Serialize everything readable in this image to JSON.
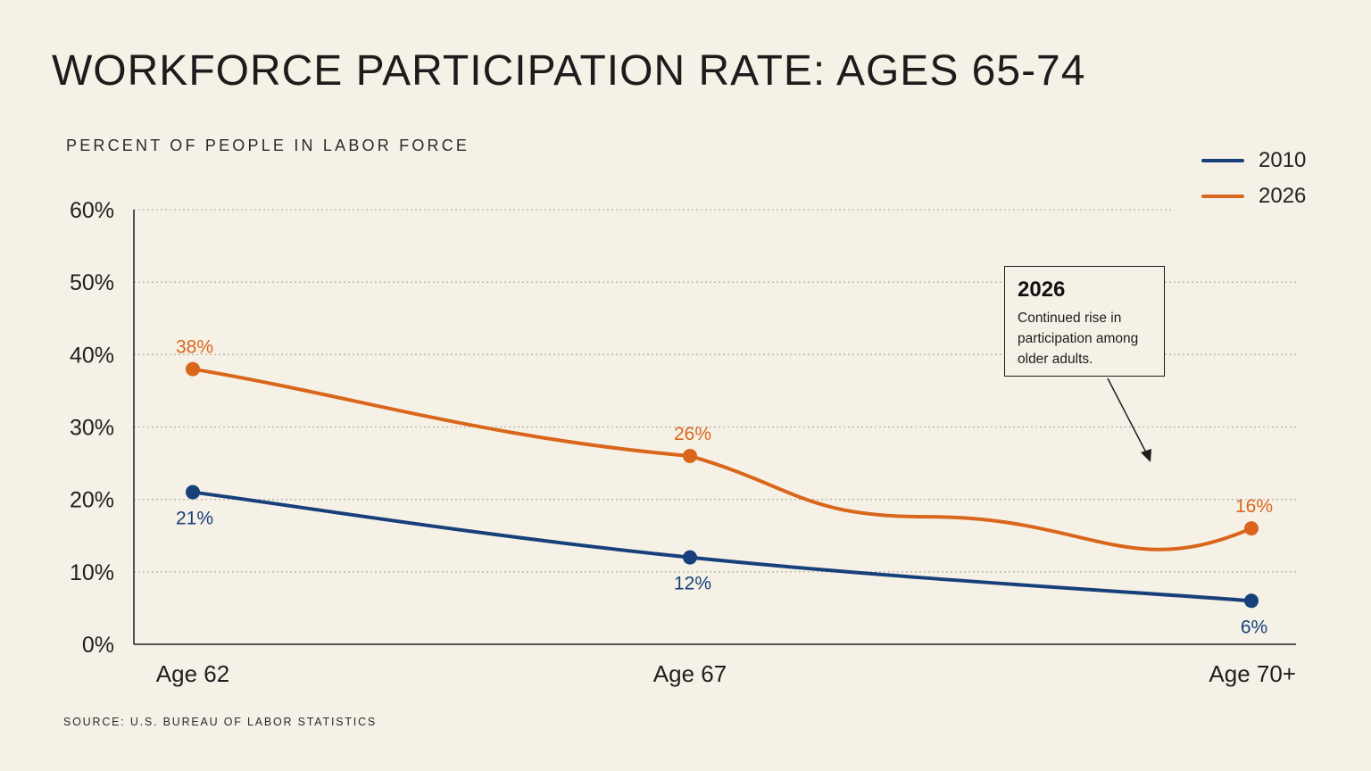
{
  "header": {
    "title": "WORKFORCE PARTICIPATION RATE: AGES 65-74",
    "ylabel": "PERCENT OF PEOPLE IN LABOR FORCE",
    "source": "SOURCE: U.S. BUREAU OF LABOR STATISTICS"
  },
  "annotation": {
    "title": "2026",
    "body": "Continued rise in participation among older adults."
  },
  "colors": {
    "2010": "#17407a",
    "2026": "#d9661c",
    "background": "#f6f1e6"
  },
  "chart_data": {
    "type": "line",
    "title": "WORKFORCE PARTICIPATION RATE: AGES 65-74",
    "ylabel": "PERCENT OF PEOPLE IN LABOR FORCE",
    "xlabel": "",
    "categories": [
      "Age 62",
      "Age 67",
      "Age 70+"
    ],
    "yticks": [
      "0%",
      "10%",
      "20%",
      "30%",
      "40%",
      "50%",
      "60%"
    ],
    "ylim": [
      0,
      60
    ],
    "grid": true,
    "legend": "top-right",
    "series": [
      {
        "name": "2010",
        "values": [
          21,
          12,
          6
        ],
        "labels": [
          "21%",
          "12%",
          "6%"
        ]
      },
      {
        "name": "2026",
        "values": [
          38,
          26,
          16
        ],
        "labels": [
          "38%",
          "26%",
          "16%"
        ]
      }
    ]
  }
}
